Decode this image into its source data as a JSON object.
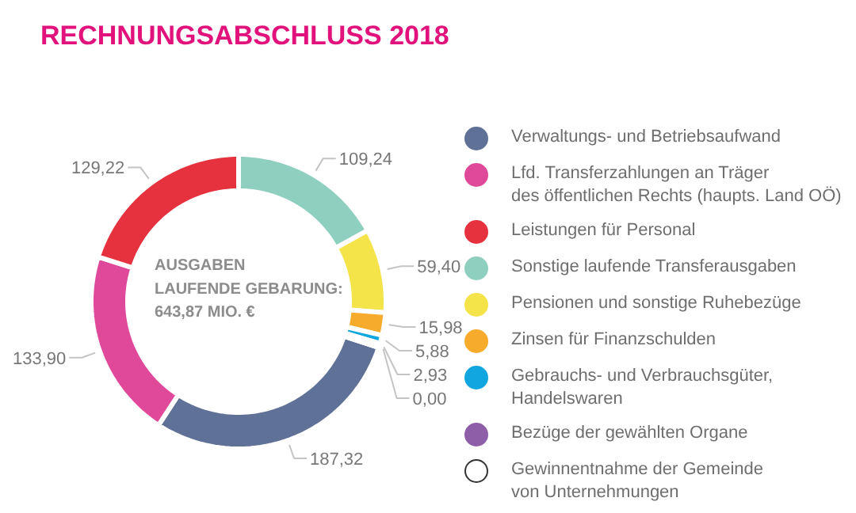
{
  "chart_data": {
    "type": "donut",
    "title": "RECHNUNGSABSCHLUSS 2018",
    "categories": [
      "Verwaltungs- und Betriebsaufwand",
      "Lfd. Transferzahlungen an Träger\ndes öffentlichen Rechts (haupts. Land OÖ)",
      "Leistungen für Personal",
      "Sonstige laufende Transferausgaben",
      "Pensionen und sonstige Ruhebezüge",
      "Zinsen für Finanzschulden",
      "Gebrauchs- und Verbrauchsgüter,\nHandelswaren",
      "Bezüge der gewählten Organe",
      "Gewinnentnahme der Gemeinde\nvon Unternehmungen"
    ],
    "values": [
      187.32,
      133.9,
      129.22,
      109.24,
      59.4,
      15.98,
      5.88,
      2.93,
      0.0
    ],
    "value_labels": [
      "187,32",
      "133,90",
      "129,22",
      "109,24",
      "59,40",
      "15,98",
      "5,88",
      "2,93",
      "0,00"
    ],
    "colors": [
      "#5f7196",
      "#e0489a",
      "#e6323e",
      "#8fcfbf",
      "#f5e34a",
      "#f7ab2c",
      "#12a6e0",
      "#8e5ea8",
      "#ffffff"
    ],
    "annotations": [
      "AUSGABEN\nLAUFENDE GEBARUNG:\n643,87 MIO. €"
    ],
    "legend": "right"
  }
}
